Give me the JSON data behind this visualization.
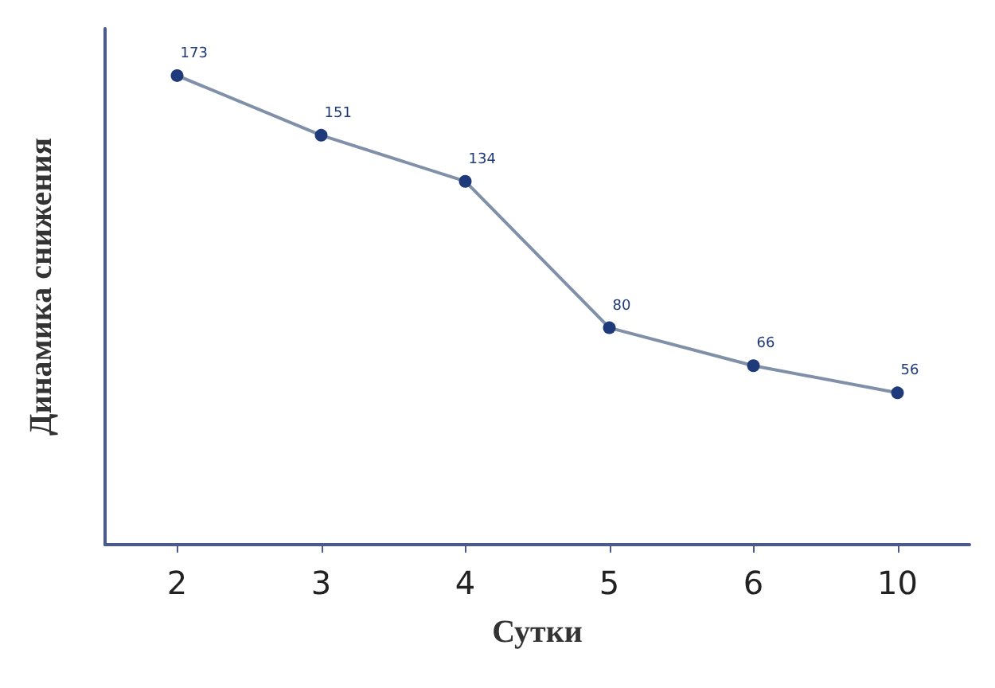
{
  "chart_data": {
    "type": "line",
    "xlabel": "Сутки",
    "ylabel": "Динамика снижения",
    "categories": [
      "2",
      "3",
      "4",
      "5",
      "6",
      "10"
    ],
    "series": [
      {
        "color": "#1f3a7a",
        "values": [
          173,
          151,
          134,
          80,
          66,
          56
        ]
      }
    ],
    "data_labels": true,
    "marker": "circle",
    "line_style": "solid",
    "grid": false,
    "tick_labels": "x"
  }
}
